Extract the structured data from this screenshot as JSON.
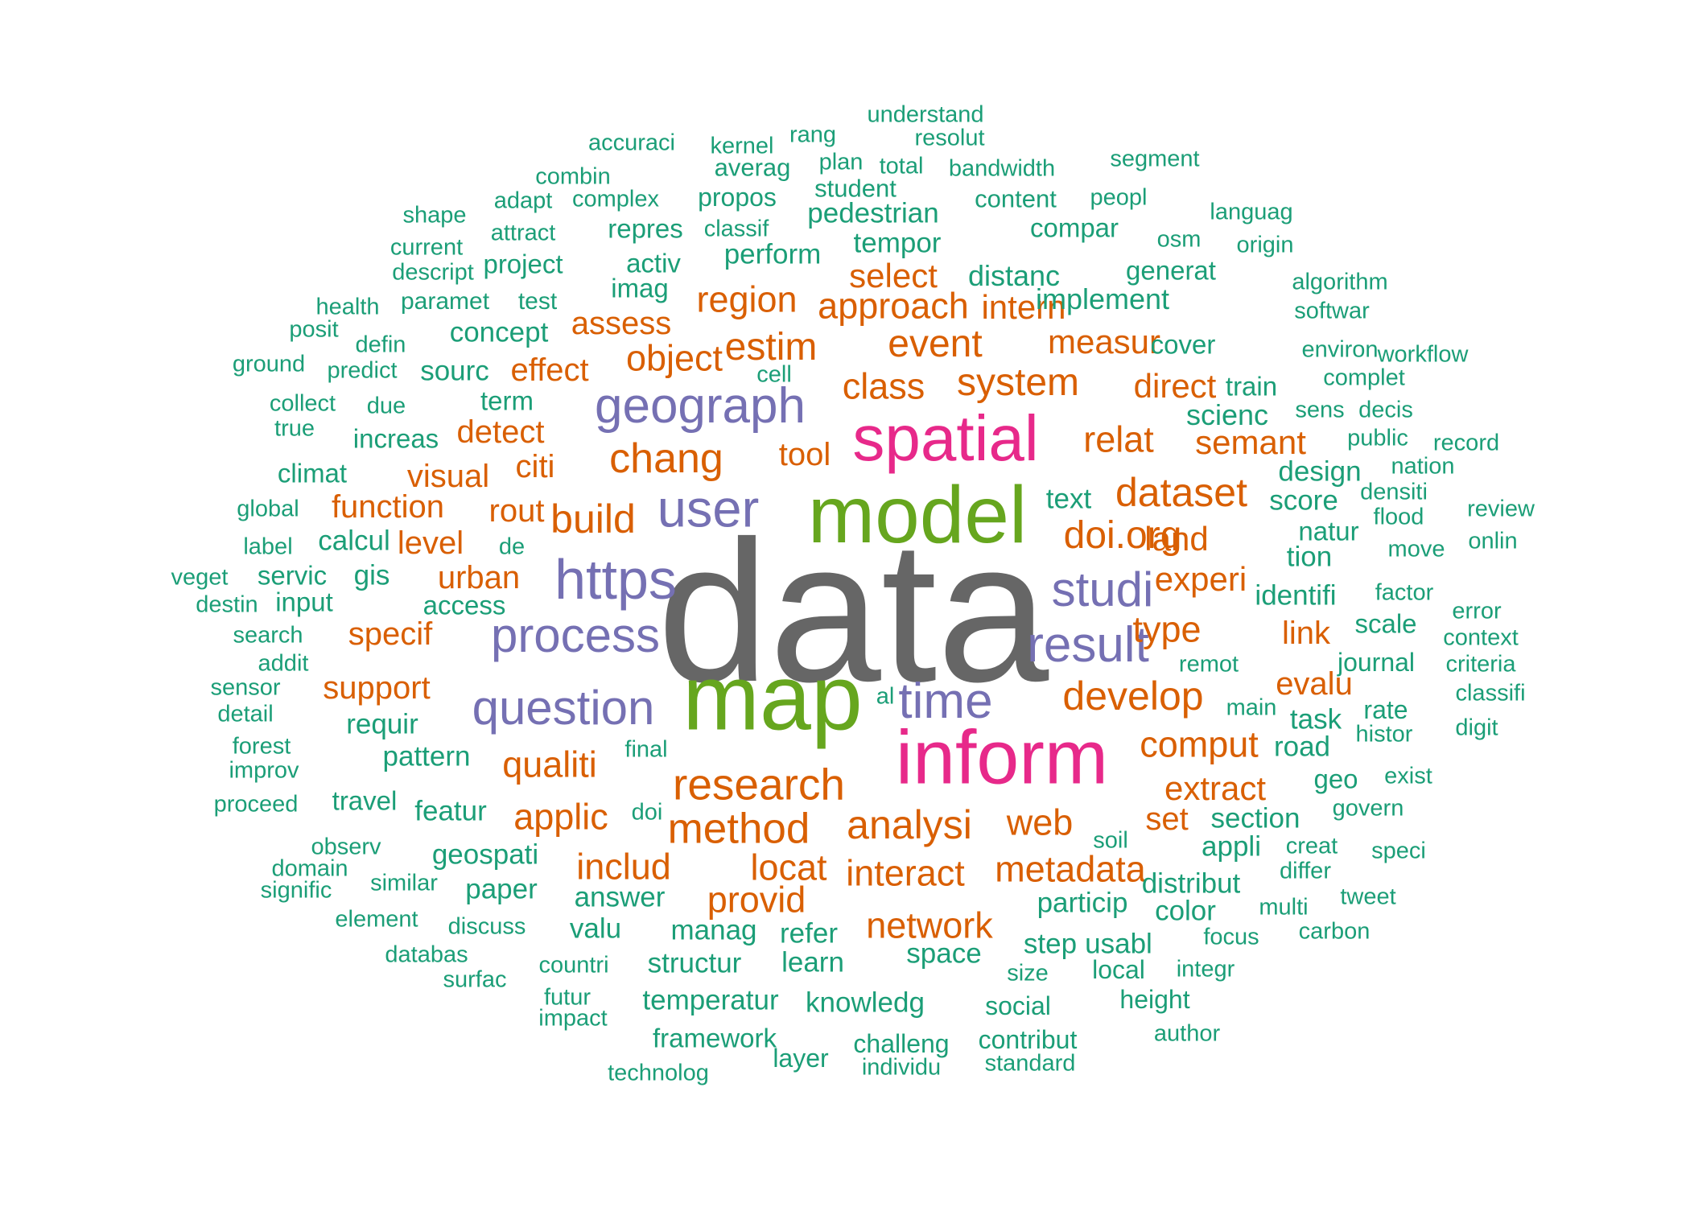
{
  "colors": {
    "t1": "#666666",
    "t2": "#66a61e",
    "t3": "#e7298a",
    "t4": "#7570b3",
    "t5": "#d95f02",
    "t6": "#1b9e77"
  },
  "words": [
    {
      "text": "data",
      "tier": 1
    },
    {
      "text": "model",
      "tier": 2
    },
    {
      "text": "map",
      "tier": 2
    },
    {
      "text": "spatial",
      "tier": 3
    },
    {
      "text": "inform",
      "tier": 3
    },
    {
      "text": "geograph",
      "tier": 4
    },
    {
      "text": "user",
      "tier": 4
    },
    {
      "text": "https",
      "tier": 4
    },
    {
      "text": "process",
      "tier": 4
    },
    {
      "text": "question",
      "tier": 4
    },
    {
      "text": "studi",
      "tier": 4
    },
    {
      "text": "result",
      "tier": 4
    },
    {
      "text": "time",
      "tier": 4
    },
    {
      "text": "chang",
      "tier": 5
    },
    {
      "text": "build",
      "tier": 5
    },
    {
      "text": "estim",
      "tier": 5
    },
    {
      "text": "event",
      "tier": 5
    },
    {
      "text": "object",
      "tier": 5
    },
    {
      "text": "system",
      "tier": 5
    },
    {
      "text": "research",
      "tier": 5
    },
    {
      "text": "method",
      "tier": 5
    },
    {
      "text": "analysi",
      "tier": 5
    },
    {
      "text": "develop",
      "tier": 5
    },
    {
      "text": "dataset",
      "tier": 5
    },
    {
      "text": "doi.org",
      "tier": 5
    },
    {
      "text": "region",
      "tier": 5
    },
    {
      "text": "approach",
      "tier": 5
    },
    {
      "text": "class",
      "tier": 5
    },
    {
      "text": "relat",
      "tier": 5
    },
    {
      "text": "applic",
      "tier": 5
    },
    {
      "text": "qualiti",
      "tier": 5
    },
    {
      "text": "includ",
      "tier": 5
    },
    {
      "text": "locat",
      "tier": 5
    },
    {
      "text": "interact",
      "tier": 5
    },
    {
      "text": "metadata",
      "tier": 5
    },
    {
      "text": "network",
      "tier": 5
    },
    {
      "text": "provid",
      "tier": 5
    },
    {
      "text": "web",
      "tier": 5
    },
    {
      "text": "comput",
      "tier": 5
    },
    {
      "text": "extract",
      "tier": 5
    },
    {
      "text": "type",
      "tier": 5
    },
    {
      "text": "experi",
      "tier": 5
    },
    {
      "text": "land",
      "tier": 5
    },
    {
      "text": "semant",
      "tier": 5
    },
    {
      "text": "direct",
      "tier": 5
    },
    {
      "text": "measur",
      "tier": 5
    },
    {
      "text": "select",
      "tier": 5
    },
    {
      "text": "intern",
      "tier": 5
    },
    {
      "text": "assess",
      "tier": 5
    },
    {
      "text": "effect",
      "tier": 5
    },
    {
      "text": "detect",
      "tier": 5
    },
    {
      "text": "citi",
      "tier": 5
    },
    {
      "text": "visual",
      "tier": 5
    },
    {
      "text": "rout",
      "tier": 5
    },
    {
      "text": "function",
      "tier": 5
    },
    {
      "text": "level",
      "tier": 5
    },
    {
      "text": "urban",
      "tier": 5
    },
    {
      "text": "specif",
      "tier": 5
    },
    {
      "text": "support",
      "tier": 5
    },
    {
      "text": "tool",
      "tier": 5
    },
    {
      "text": "evalu",
      "tier": 5
    },
    {
      "text": "link",
      "tier": 5
    },
    {
      "text": "set",
      "tier": 5
    },
    {
      "text": "understand",
      "tier": 6
    },
    {
      "text": "accuraci",
      "tier": 6
    },
    {
      "text": "kernel",
      "tier": 6
    },
    {
      "text": "rang",
      "tier": 6
    },
    {
      "text": "resolut",
      "tier": 6
    },
    {
      "text": "plan",
      "tier": 6
    },
    {
      "text": "total",
      "tier": 6
    },
    {
      "text": "bandwidth",
      "tier": 6
    },
    {
      "text": "segment",
      "tier": 6
    },
    {
      "text": "combin",
      "tier": 6
    },
    {
      "text": "averag",
      "tier": 6
    },
    {
      "text": "student",
      "tier": 6
    },
    {
      "text": "content",
      "tier": 6
    },
    {
      "text": "peopl",
      "tier": 6
    },
    {
      "text": "shape",
      "tier": 6
    },
    {
      "text": "adapt",
      "tier": 6
    },
    {
      "text": "complex",
      "tier": 6
    },
    {
      "text": "propos",
      "tier": 6
    },
    {
      "text": "pedestrian",
      "tier": 6
    },
    {
      "text": "languag",
      "tier": 6
    },
    {
      "text": "current",
      "tier": 6
    },
    {
      "text": "attract",
      "tier": 6
    },
    {
      "text": "repres",
      "tier": 6
    },
    {
      "text": "classif",
      "tier": 6
    },
    {
      "text": "compar",
      "tier": 6
    },
    {
      "text": "osm",
      "tier": 6
    },
    {
      "text": "origin",
      "tier": 6
    },
    {
      "text": "descript",
      "tier": 6
    },
    {
      "text": "project",
      "tier": 6
    },
    {
      "text": "activ",
      "tier": 6
    },
    {
      "text": "perform",
      "tier": 6
    },
    {
      "text": "tempor",
      "tier": 6
    },
    {
      "text": "generat",
      "tier": 6
    },
    {
      "text": "algorithm",
      "tier": 6
    },
    {
      "text": "health",
      "tier": 6
    },
    {
      "text": "paramet",
      "tier": 6
    },
    {
      "text": "test",
      "tier": 6
    },
    {
      "text": "imag",
      "tier": 6
    },
    {
      "text": "distanc",
      "tier": 6
    },
    {
      "text": "implement",
      "tier": 6
    },
    {
      "text": "softwar",
      "tier": 6
    },
    {
      "text": "posit",
      "tier": 6
    },
    {
      "text": "defin",
      "tier": 6
    },
    {
      "text": "concept",
      "tier": 6
    },
    {
      "text": "cover",
      "tier": 6
    },
    {
      "text": "environ",
      "tier": 6
    },
    {
      "text": "workflow",
      "tier": 6
    },
    {
      "text": "ground",
      "tier": 6
    },
    {
      "text": "predict",
      "tier": 6
    },
    {
      "text": "sourc",
      "tier": 6
    },
    {
      "text": "cell",
      "tier": 6
    },
    {
      "text": "train",
      "tier": 6
    },
    {
      "text": "complet",
      "tier": 6
    },
    {
      "text": "collect",
      "tier": 6
    },
    {
      "text": "due",
      "tier": 6
    },
    {
      "text": "term",
      "tier": 6
    },
    {
      "text": "scienc",
      "tier": 6
    },
    {
      "text": "sens",
      "tier": 6
    },
    {
      "text": "decis",
      "tier": 6
    },
    {
      "text": "true",
      "tier": 6
    },
    {
      "text": "increas",
      "tier": 6
    },
    {
      "text": "public",
      "tier": 6
    },
    {
      "text": "record",
      "tier": 6
    },
    {
      "text": "climat",
      "tier": 6
    },
    {
      "text": "design",
      "tier": 6
    },
    {
      "text": "nation",
      "tier": 6
    },
    {
      "text": "densiti",
      "tier": 6
    },
    {
      "text": "global",
      "tier": 6
    },
    {
      "text": "text",
      "tier": 6
    },
    {
      "text": "score",
      "tier": 6
    },
    {
      "text": "flood",
      "tier": 6
    },
    {
      "text": "review",
      "tier": 6
    },
    {
      "text": "label",
      "tier": 6
    },
    {
      "text": "calcul",
      "tier": 6
    },
    {
      "text": "de",
      "tier": 6
    },
    {
      "text": "natur",
      "tier": 6
    },
    {
      "text": "move",
      "tier": 6
    },
    {
      "text": "onlin",
      "tier": 6
    },
    {
      "text": "veget",
      "tier": 6
    },
    {
      "text": "servic",
      "tier": 6
    },
    {
      "text": "gis",
      "tier": 6
    },
    {
      "text": "tion",
      "tier": 6
    },
    {
      "text": "destin",
      "tier": 6
    },
    {
      "text": "input",
      "tier": 6
    },
    {
      "text": "access",
      "tier": 6
    },
    {
      "text": "identifi",
      "tier": 6
    },
    {
      "text": "factor",
      "tier": 6
    },
    {
      "text": "error",
      "tier": 6
    },
    {
      "text": "search",
      "tier": 6
    },
    {
      "text": "scale",
      "tier": 6
    },
    {
      "text": "context",
      "tier": 6
    },
    {
      "text": "addit",
      "tier": 6
    },
    {
      "text": "remot",
      "tier": 6
    },
    {
      "text": "journal",
      "tier": 6
    },
    {
      "text": "criteria",
      "tier": 6
    },
    {
      "text": "sensor",
      "tier": 6
    },
    {
      "text": "al",
      "tier": 6
    },
    {
      "text": "classifi",
      "tier": 6
    },
    {
      "text": "detail",
      "tier": 6
    },
    {
      "text": "requir",
      "tier": 6
    },
    {
      "text": "main",
      "tier": 6
    },
    {
      "text": "task",
      "tier": 6
    },
    {
      "text": "rate",
      "tier": 6
    },
    {
      "text": "digit",
      "tier": 6
    },
    {
      "text": "forest",
      "tier": 6
    },
    {
      "text": "pattern",
      "tier": 6
    },
    {
      "text": "final",
      "tier": 6
    },
    {
      "text": "road",
      "tier": 6
    },
    {
      "text": "histor",
      "tier": 6
    },
    {
      "text": "improv",
      "tier": 6
    },
    {
      "text": "geo",
      "tier": 6
    },
    {
      "text": "exist",
      "tier": 6
    },
    {
      "text": "proceed",
      "tier": 6
    },
    {
      "text": "travel",
      "tier": 6
    },
    {
      "text": "featur",
      "tier": 6
    },
    {
      "text": "doi",
      "tier": 6
    },
    {
      "text": "section",
      "tier": 6
    },
    {
      "text": "govern",
      "tier": 6
    },
    {
      "text": "observ",
      "tier": 6
    },
    {
      "text": "geospati",
      "tier": 6
    },
    {
      "text": "soil",
      "tier": 6
    },
    {
      "text": "appli",
      "tier": 6
    },
    {
      "text": "creat",
      "tier": 6
    },
    {
      "text": "speci",
      "tier": 6
    },
    {
      "text": "domain",
      "tier": 6
    },
    {
      "text": "similar",
      "tier": 6
    },
    {
      "text": "paper",
      "tier": 6
    },
    {
      "text": "distribut",
      "tier": 6
    },
    {
      "text": "differ",
      "tier": 6
    },
    {
      "text": "signific",
      "tier": 6
    },
    {
      "text": "answer",
      "tier": 6
    },
    {
      "text": "particip",
      "tier": 6
    },
    {
      "text": "tweet",
      "tier": 6
    },
    {
      "text": "element",
      "tier": 6
    },
    {
      "text": "discuss",
      "tier": 6
    },
    {
      "text": "valu",
      "tier": 6
    },
    {
      "text": "manag",
      "tier": 6
    },
    {
      "text": "refer",
      "tier": 6
    },
    {
      "text": "color",
      "tier": 6
    },
    {
      "text": "multi",
      "tier": 6
    },
    {
      "text": "focus",
      "tier": 6
    },
    {
      "text": "carbon",
      "tier": 6
    },
    {
      "text": "databas",
      "tier": 6
    },
    {
      "text": "countri",
      "tier": 6
    },
    {
      "text": "structur",
      "tier": 6
    },
    {
      "text": "learn",
      "tier": 6
    },
    {
      "text": "space",
      "tier": 6
    },
    {
      "text": "step",
      "tier": 6
    },
    {
      "text": "usabl",
      "tier": 6
    },
    {
      "text": "surfac",
      "tier": 6
    },
    {
      "text": "size",
      "tier": 6
    },
    {
      "text": "local",
      "tier": 6
    },
    {
      "text": "integr",
      "tier": 6
    },
    {
      "text": "futur",
      "tier": 6
    },
    {
      "text": "temperatur",
      "tier": 6
    },
    {
      "text": "knowledg",
      "tier": 6
    },
    {
      "text": "height",
      "tier": 6
    },
    {
      "text": "impact",
      "tier": 6
    },
    {
      "text": "social",
      "tier": 6
    },
    {
      "text": "framework",
      "tier": 6
    },
    {
      "text": "challeng",
      "tier": 6
    },
    {
      "text": "contribut",
      "tier": 6
    },
    {
      "text": "author",
      "tier": 6
    },
    {
      "text": "layer",
      "tier": 6
    },
    {
      "text": "technolog",
      "tier": 6
    },
    {
      "text": "individu",
      "tier": 6
    },
    {
      "text": "standard",
      "tier": 6
    }
  ]
}
